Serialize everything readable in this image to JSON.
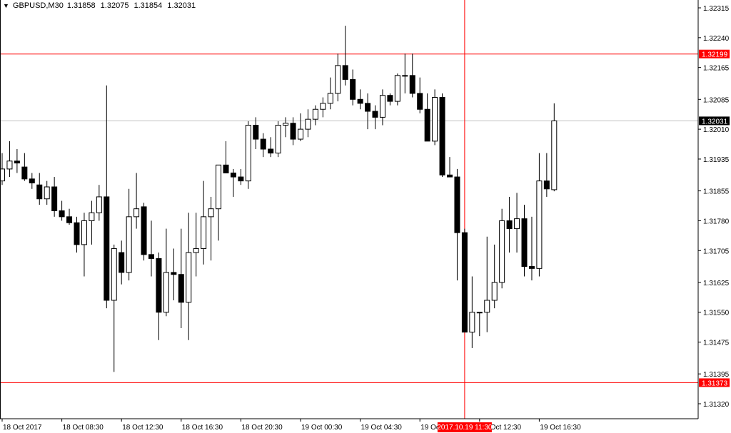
{
  "header": {
    "symbol": "GBPUSD,M30",
    "open": "1.31858",
    "high": "1.32075",
    "low": "1.31854",
    "close": "1.32031"
  },
  "colors": {
    "background": "#ffffff",
    "axis": "#000000",
    "line_red": "#ff0000",
    "bid_line": "#c0c0c0",
    "price_tag_dark": "#000000",
    "price_tag_red": "#ff0000",
    "tag_text": "#ffffff"
  },
  "chart_data": {
    "type": "candlestick",
    "title": "GBPUSD,M30",
    "ylim": [
      1.3128,
      1.3235
    ],
    "y_ticks": [
      "1.32315",
      "1.32240",
      "1.32165",
      "1.32085",
      "1.32010",
      "1.31935",
      "1.31855",
      "1.31780",
      "1.31705",
      "1.31625",
      "1.31550",
      "1.31475",
      "1.31395",
      "1.31320"
    ],
    "x_ticks": [
      {
        "bar": 0,
        "label": "18 Oct 2017"
      },
      {
        "bar": 8,
        "label": "18 Oct 08:30"
      },
      {
        "bar": 16,
        "label": "18 Oct 12:30"
      },
      {
        "bar": 24,
        "label": "18 Oct 16:30"
      },
      {
        "bar": 32,
        "label": "18 Oct 20:30"
      },
      {
        "bar": 40,
        "label": "19 Oct 00:30"
      },
      {
        "bar": 48,
        "label": "19 Oct 04:30"
      },
      {
        "bar": 56,
        "label": "19 Oct 08:30"
      },
      {
        "bar": 64,
        "label": "19 Oct 12:30"
      },
      {
        "bar": 72,
        "label": "19 Oct 16:30"
      }
    ],
    "horizontal_lines": [
      {
        "price": 1.32199,
        "label": "1.32199",
        "style": "red"
      },
      {
        "price": 1.31373,
        "label": "1.31373",
        "style": "red"
      },
      {
        "price": 1.32031,
        "label": "1.32031",
        "style": "bid"
      }
    ],
    "crosshair": {
      "bar": 62,
      "label": "2017.10.19 11:30"
    },
    "candles": [
      {
        "o": 1.3188,
        "h": 1.3195,
        "l": 1.3187,
        "c": 1.3191
      },
      {
        "o": 1.3191,
        "h": 1.3198,
        "l": 1.3189,
        "c": 1.3193
      },
      {
        "o": 1.3193,
        "h": 1.3196,
        "l": 1.319,
        "c": 1.31925
      },
      {
        "o": 1.31915,
        "h": 1.3195,
        "l": 1.3188,
        "c": 1.31885
      },
      {
        "o": 1.31885,
        "h": 1.319,
        "l": 1.3186,
        "c": 1.31875
      },
      {
        "o": 1.3187,
        "h": 1.319,
        "l": 1.3182,
        "c": 1.31835
      },
      {
        "o": 1.31835,
        "h": 1.3188,
        "l": 1.3182,
        "c": 1.31865
      },
      {
        "o": 1.31865,
        "h": 1.3189,
        "l": 1.3179,
        "c": 1.31805
      },
      {
        "o": 1.31805,
        "h": 1.3183,
        "l": 1.3178,
        "c": 1.3179
      },
      {
        "o": 1.3179,
        "h": 1.3181,
        "l": 1.3177,
        "c": 1.31775
      },
      {
        "o": 1.31775,
        "h": 1.3179,
        "l": 1.317,
        "c": 1.3172
      },
      {
        "o": 1.3172,
        "h": 1.318,
        "l": 1.3164,
        "c": 1.3178
      },
      {
        "o": 1.3178,
        "h": 1.3183,
        "l": 1.3172,
        "c": 1.318
      },
      {
        "o": 1.318,
        "h": 1.3187,
        "l": 1.3178,
        "c": 1.3184
      },
      {
        "o": 1.3184,
        "h": 1.3212,
        "l": 1.3156,
        "c": 1.3158
      },
      {
        "o": 1.3158,
        "h": 1.3172,
        "l": 1.314,
        "c": 1.3171
      },
      {
        "o": 1.317,
        "h": 1.3173,
        "l": 1.3162,
        "c": 1.3165
      },
      {
        "o": 1.3165,
        "h": 1.3186,
        "l": 1.3163,
        "c": 1.3179
      },
      {
        "o": 1.3179,
        "h": 1.319,
        "l": 1.3176,
        "c": 1.3181
      },
      {
        "o": 1.31815,
        "h": 1.31825,
        "l": 1.3168,
        "c": 1.31695
      },
      {
        "o": 1.31695,
        "h": 1.3178,
        "l": 1.3164,
        "c": 1.31685
      },
      {
        "o": 1.31685,
        "h": 1.317,
        "l": 1.3148,
        "c": 1.3155
      },
      {
        "o": 1.3155,
        "h": 1.3176,
        "l": 1.3154,
        "c": 1.3165
      },
      {
        "o": 1.3165,
        "h": 1.3171,
        "l": 1.3158,
        "c": 1.31645
      },
      {
        "o": 1.31645,
        "h": 1.3176,
        "l": 1.3151,
        "c": 1.31575
      },
      {
        "o": 1.31575,
        "h": 1.318,
        "l": 1.3148,
        "c": 1.317
      },
      {
        "o": 1.317,
        "h": 1.318,
        "l": 1.3164,
        "c": 1.3171
      },
      {
        "o": 1.3171,
        "h": 1.3188,
        "l": 1.3167,
        "c": 1.3179
      },
      {
        "o": 1.3179,
        "h": 1.3184,
        "l": 1.3168,
        "c": 1.3181
      },
      {
        "o": 1.3181,
        "h": 1.3192,
        "l": 1.3173,
        "c": 1.3192
      },
      {
        "o": 1.3192,
        "h": 1.3198,
        "l": 1.319,
        "c": 1.319
      },
      {
        "o": 1.319,
        "h": 1.3191,
        "l": 1.3184,
        "c": 1.3189
      },
      {
        "o": 1.3189,
        "h": 1.3191,
        "l": 1.3187,
        "c": 1.3188
      },
      {
        "o": 1.3188,
        "h": 1.3203,
        "l": 1.3186,
        "c": 1.3202
      },
      {
        "o": 1.3202,
        "h": 1.3204,
        "l": 1.3196,
        "c": 1.31985
      },
      {
        "o": 1.31985,
        "h": 1.32,
        "l": 1.3194,
        "c": 1.3196
      },
      {
        "o": 1.3196,
        "h": 1.3199,
        "l": 1.3194,
        "c": 1.3195
      },
      {
        "o": 1.3195,
        "h": 1.3203,
        "l": 1.3194,
        "c": 1.3202
      },
      {
        "o": 1.3202,
        "h": 1.3204,
        "l": 1.3199,
        "c": 1.32025
      },
      {
        "o": 1.32025,
        "h": 1.3204,
        "l": 1.3197,
        "c": 1.31985
      },
      {
        "o": 1.31985,
        "h": 1.3205,
        "l": 1.3198,
        "c": 1.3201
      },
      {
        "o": 1.3201,
        "h": 1.3206,
        "l": 1.3199,
        "c": 1.32035
      },
      {
        "o": 1.32035,
        "h": 1.3207,
        "l": 1.3202,
        "c": 1.3206
      },
      {
        "o": 1.3206,
        "h": 1.3209,
        "l": 1.3204,
        "c": 1.32075
      },
      {
        "o": 1.32075,
        "h": 1.3214,
        "l": 1.3206,
        "c": 1.321
      },
      {
        "o": 1.321,
        "h": 1.322,
        "l": 1.3208,
        "c": 1.3217
      },
      {
        "o": 1.3217,
        "h": 1.3227,
        "l": 1.3212,
        "c": 1.32135
      },
      {
        "o": 1.32135,
        "h": 1.3216,
        "l": 1.3207,
        "c": 1.32085
      },
      {
        "o": 1.32085,
        "h": 1.3211,
        "l": 1.3206,
        "c": 1.32075
      },
      {
        "o": 1.32075,
        "h": 1.321,
        "l": 1.3201,
        "c": 1.32055
      },
      {
        "o": 1.32055,
        "h": 1.3207,
        "l": 1.3201,
        "c": 1.3204
      },
      {
        "o": 1.3204,
        "h": 1.3211,
        "l": 1.3202,
        "c": 1.32095
      },
      {
        "o": 1.32095,
        "h": 1.321,
        "l": 1.3207,
        "c": 1.3208
      },
      {
        "o": 1.3208,
        "h": 1.3215,
        "l": 1.3207,
        "c": 1.32145
      },
      {
        "o": 1.32145,
        "h": 1.322,
        "l": 1.321,
        "c": 1.32145
      },
      {
        "o": 1.32145,
        "h": 1.322,
        "l": 1.3209,
        "c": 1.321
      },
      {
        "o": 1.321,
        "h": 1.3214,
        "l": 1.3205,
        "c": 1.3206
      },
      {
        "o": 1.3206,
        "h": 1.321,
        "l": 1.3199,
        "c": 1.3198
      },
      {
        "o": 1.3198,
        "h": 1.3211,
        "l": 1.3197,
        "c": 1.3209
      },
      {
        "o": 1.3209,
        "h": 1.321,
        "l": 1.3189,
        "c": 1.31895
      },
      {
        "o": 1.31895,
        "h": 1.3194,
        "l": 1.3189,
        "c": 1.3189
      },
      {
        "o": 1.3189,
        "h": 1.3191,
        "l": 1.3163,
        "c": 1.3175
      },
      {
        "o": 1.3175,
        "h": 1.3176,
        "l": 1.315,
        "c": 1.315
      },
      {
        "o": 1.315,
        "h": 1.3164,
        "l": 1.3146,
        "c": 1.3155
      },
      {
        "o": 1.3155,
        "h": 1.3155,
        "l": 1.3149,
        "c": 1.3155
      },
      {
        "o": 1.3155,
        "h": 1.3174,
        "l": 1.315,
        "c": 1.3158
      },
      {
        "o": 1.3158,
        "h": 1.3172,
        "l": 1.3156,
        "c": 1.31625
      },
      {
        "o": 1.31625,
        "h": 1.3181,
        "l": 1.3161,
        "c": 1.3178
      },
      {
        "o": 1.3178,
        "h": 1.3184,
        "l": 1.317,
        "c": 1.3176
      },
      {
        "o": 1.3176,
        "h": 1.3185,
        "l": 1.317,
        "c": 1.31785
      },
      {
        "o": 1.31785,
        "h": 1.3182,
        "l": 1.3164,
        "c": 1.31665
      },
      {
        "o": 1.31665,
        "h": 1.3179,
        "l": 1.3163,
        "c": 1.3166
      },
      {
        "o": 1.3166,
        "h": 1.3195,
        "l": 1.3164,
        "c": 1.3188
      },
      {
        "o": 1.3188,
        "h": 1.3195,
        "l": 1.3184,
        "c": 1.3186
      },
      {
        "o": 1.31858,
        "h": 1.32075,
        "l": 1.31854,
        "c": 1.32031
      }
    ]
  }
}
